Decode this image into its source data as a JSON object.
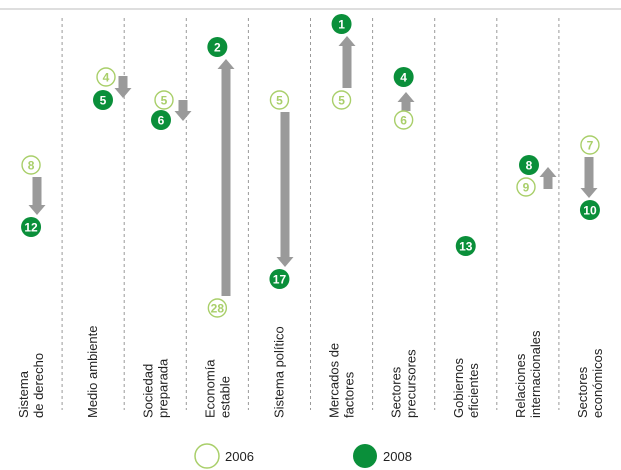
{
  "chart_data": {
    "type": "scatter",
    "colors": {
      "y2006": "#a9cf6a",
      "y2008": "#0a8f3a",
      "arrow": "#9a9a9a",
      "divider": "#9a9a9a"
    },
    "legend": {
      "items": [
        {
          "label": "2006",
          "series": "y2006"
        },
        {
          "label": "2008",
          "series": "y2008"
        }
      ],
      "placement": "bottom"
    },
    "categories": [
      {
        "label1": "Sistema",
        "label2": "de derecho",
        "rank2006": 8,
        "rank2008": 12
      },
      {
        "label1": "Medio ambiente",
        "label2": "",
        "rank2006": 4,
        "rank2008": 5
      },
      {
        "label1": "Sociedad",
        "label2": "preparada",
        "rank2006": 5,
        "rank2008": 6
      },
      {
        "label1": "Economía",
        "label2": "estable",
        "rank2006": 28,
        "rank2008": 2
      },
      {
        "label1": "Sistema político",
        "label2": "",
        "rank2006": 5,
        "rank2008": 17
      },
      {
        "label1": "Mercados de",
        "label2": "factores",
        "rank2006": 5,
        "rank2008": 1
      },
      {
        "label1": "Sectores",
        "label2": "precursores",
        "rank2006": 6,
        "rank2008": 4
      },
      {
        "label1": "Gobiernos",
        "label2": "eficientes",
        "rank2006": null,
        "rank2008": 13
      },
      {
        "label1": "Relaciones",
        "label2": "internacionales",
        "rank2006": 9,
        "rank2008": 8
      },
      {
        "label1": "Sectores",
        "label2": "económicos",
        "rank2006": 7,
        "rank2008": 10
      }
    ]
  }
}
